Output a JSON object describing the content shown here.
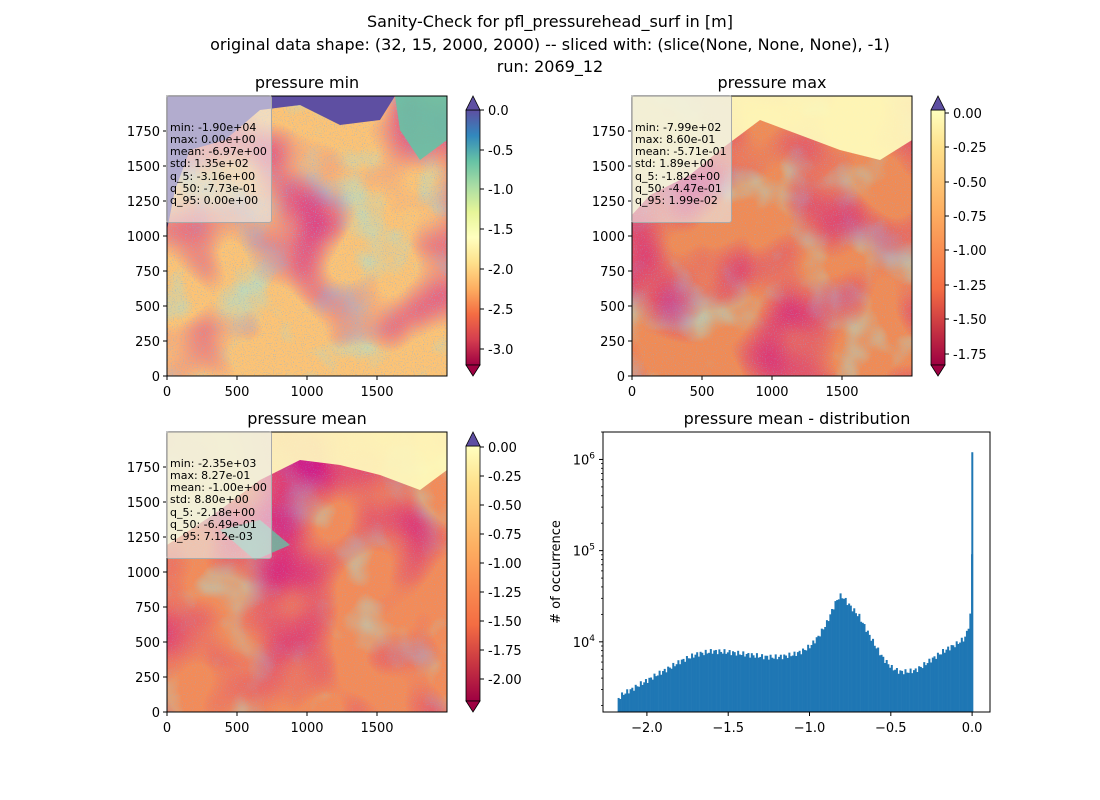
{
  "suptitle": {
    "line1": "Sanity-Check for pfl_pressurehead_surf in [m]",
    "line2": "original data shape: (32, 15, 2000, 2000) -- sliced with: (slice(None, None, None), -1)",
    "line3": "run: 2069_12"
  },
  "colormap_stops": [
    "#9e0142",
    "#d53e4f",
    "#f46d43",
    "#fdae61",
    "#fee08b",
    "#ffffbf",
    "#e6f598",
    "#abdda4",
    "#66c2a5",
    "#3288bd",
    "#5e4fa2"
  ],
  "panels": {
    "min": {
      "title": "pressure min",
      "xticks": [
        "0",
        "500",
        "1000",
        "1500"
      ],
      "yticks": [
        "0",
        "250",
        "500",
        "750",
        "1000",
        "1250",
        "1500",
        "1750"
      ],
      "colorbar": {
        "vmin": -3.2,
        "vmax": 0.0,
        "ticks": [
          "0.0",
          "-0.5",
          "-1.0",
          "-1.5",
          "-2.0",
          "-2.5",
          "-3.0"
        ]
      },
      "stats": [
        "min: -1.90e+04",
        "max: 0.00e+00",
        "mean: -6.97e+00",
        "std: 1.35e+02",
        "q_5: -3.16e+00",
        "q_50: -7.73e-01",
        "q_95: 0.00e+00"
      ]
    },
    "max": {
      "title": "pressure max",
      "xticks": [
        "0",
        "500",
        "1000",
        "1500"
      ],
      "yticks": [
        "0",
        "250",
        "500",
        "750",
        "1000",
        "1250",
        "1500",
        "1750"
      ],
      "colorbar": {
        "vmin": -1.82,
        "vmax": 0.02,
        "ticks": [
          "0.00",
          "-0.25",
          "-0.50",
          "-0.75",
          "-1.00",
          "-1.25",
          "-1.50",
          "-1.75"
        ]
      },
      "stats": [
        "min: -7.99e+02",
        "max: 8.60e-01",
        "mean: -5.71e-01",
        "std: 1.89e+00",
        "q_5: -1.82e+00",
        "q_50: -4.47e-01",
        "q_95: 1.99e-02"
      ]
    },
    "mean": {
      "title": "pressure mean",
      "xticks": [
        "0",
        "500",
        "1000",
        "1500"
      ],
      "yticks": [
        "0",
        "250",
        "500",
        "750",
        "1000",
        "1250",
        "1500",
        "1750"
      ],
      "colorbar": {
        "vmin": -2.18,
        "vmax": 0.0071,
        "ticks": [
          "0.00",
          "-0.25",
          "-0.50",
          "-0.75",
          "-1.00",
          "-1.25",
          "-1.50",
          "-1.75",
          "-2.00"
        ]
      },
      "stats": [
        "min: -2.35e+03",
        "max: 8.27e-01",
        "mean: -1.00e+00",
        "std: 8.80e+00",
        "q_5: -2.18e+00",
        "q_50: -6.49e-01",
        "q_95: 7.12e-03"
      ]
    }
  },
  "histogram": {
    "title": "pressure mean - distribution",
    "ylabel": "# of occurrence",
    "xticks": [
      "−2.0",
      "−1.5",
      "−1.0",
      "−0.5",
      "0.0"
    ],
    "yticks": [
      "10^4",
      "10^5",
      "10^6"
    ],
    "bar_color": "#1f77b4"
  },
  "chart_data": [
    {
      "type": "heatmap",
      "title": "pressure min",
      "xlim": [
        0,
        2000
      ],
      "ylim": [
        0,
        2000
      ],
      "colorbar_range": [
        -3.2,
        0.0
      ]
    },
    {
      "type": "heatmap",
      "title": "pressure max",
      "xlim": [
        0,
        2000
      ],
      "ylim": [
        0,
        2000
      ],
      "colorbar_range": [
        -1.82,
        0.02
      ]
    },
    {
      "type": "heatmap",
      "title": "pressure mean",
      "xlim": [
        0,
        2000
      ],
      "ylim": [
        0,
        2000
      ],
      "colorbar_range": [
        -2.18,
        0.0071
      ]
    },
    {
      "type": "bar",
      "title": "pressure mean - distribution",
      "ylabel": "# of occurrence",
      "yscale": "log",
      "xlim": [
        -2.27,
        0.11
      ],
      "ylim": [
        1700,
        2000000
      ],
      "x": [
        -2.18,
        -2.15,
        -2.1,
        -2.05,
        -2.0,
        -1.95,
        -1.9,
        -1.85,
        -1.8,
        -1.75,
        -1.7,
        -1.65,
        -1.6,
        -1.55,
        -1.5,
        -1.45,
        -1.4,
        -1.35,
        -1.3,
        -1.25,
        -1.2,
        -1.15,
        -1.1,
        -1.05,
        -1.0,
        -0.95,
        -0.9,
        -0.85,
        -0.82,
        -0.8,
        -0.78,
        -0.75,
        -0.7,
        -0.65,
        -0.6,
        -0.55,
        -0.5,
        -0.45,
        -0.4,
        -0.35,
        -0.3,
        -0.25,
        -0.2,
        -0.15,
        -0.1,
        -0.05,
        -0.03,
        -0.01,
        0.0
      ],
      "y": [
        2400,
        2700,
        3000,
        3400,
        3800,
        4300,
        4800,
        5400,
        6100,
        6700,
        7300,
        7600,
        7900,
        7800,
        7700,
        7500,
        7300,
        7100,
        6900,
        6800,
        6800,
        7000,
        7300,
        7900,
        9000,
        11500,
        16000,
        26000,
        32000,
        31000,
        28000,
        24000,
        19000,
        13000,
        9000,
        6500,
        5200,
        4700,
        4700,
        4900,
        5600,
        6500,
        7500,
        8500,
        9500,
        11000,
        14000,
        23000,
        1200000
      ]
    }
  ]
}
